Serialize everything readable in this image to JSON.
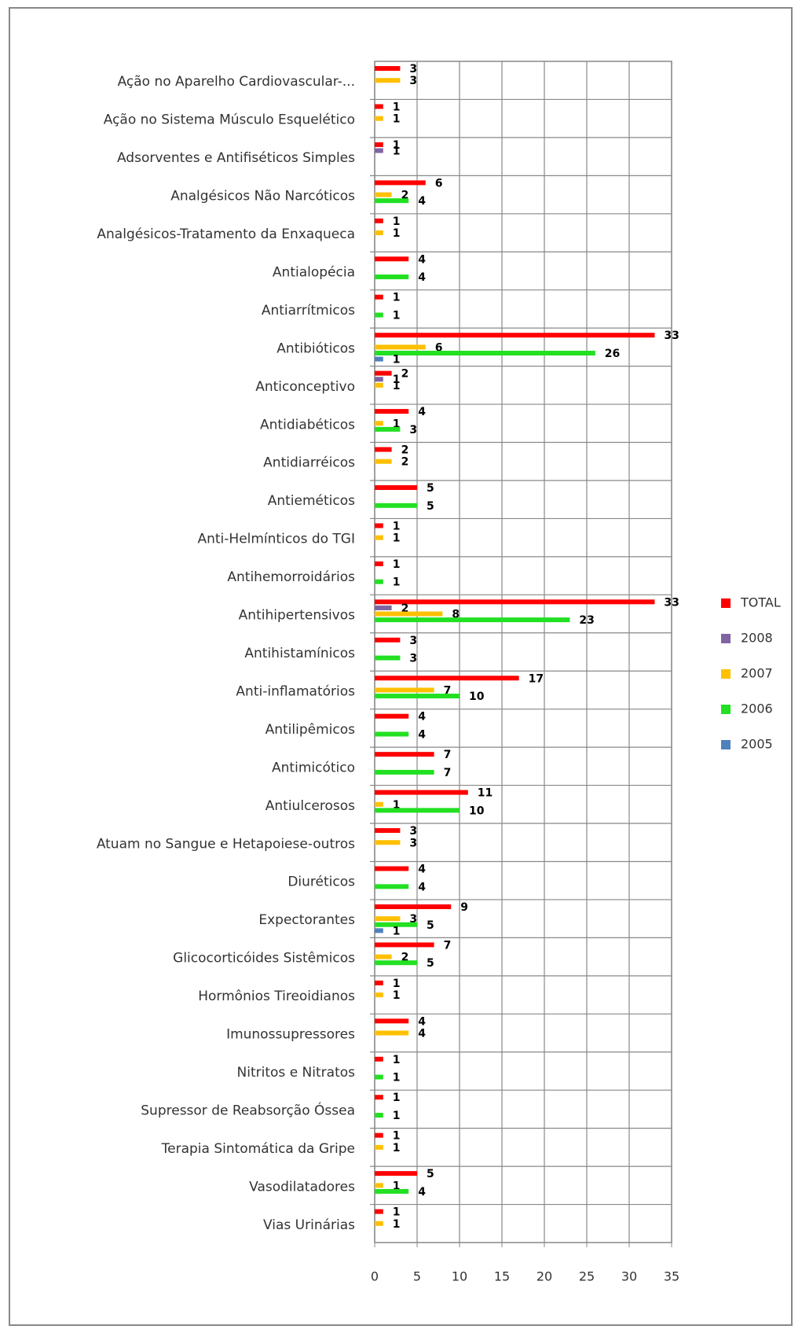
{
  "chart_data": {
    "type": "bar",
    "orientation": "horizontal",
    "categories": [
      "Ação no Aparelho Cardiovascular-...",
      "Ação no Sistema Músculo Esquelético",
      "Adsorventes e Antifiséticos Simples",
      "Analgésicos Não Narcóticos",
      "Analgésicos-Tratamento da Enxaqueca",
      "Antialopécia",
      "Antiarrítmicos",
      "Antibióticos",
      "Anticonceptivo",
      "Antidiabéticos",
      "Antidiarréicos",
      "Antieméticos",
      "Anti-Helmínticos do TGI",
      "Antihemorroidários",
      "Antihipertensivos",
      "Antihistamínicos",
      "Anti-inflamatórios",
      "Antilipêmicos",
      "Antimicótico",
      "Antiulcerosos",
      "Atuam no Sangue e Hetapoiese-outros",
      "Diuréticos",
      "Expectorantes",
      "Glicocorticóides Sistêmicos",
      "Hormônios Tireoidianos",
      "Imunossupressores",
      "Nitritos e Nitratos",
      "Supressor de Reabsorção Óssea",
      "Terapia Sintomática da Gripe",
      "Vasodilatadores",
      "Vias Urinárias"
    ],
    "series": [
      {
        "name": "TOTAL",
        "color": "#ff0000",
        "values": [
          3,
          1,
          1,
          6,
          1,
          4,
          1,
          33,
          2,
          4,
          2,
          5,
          1,
          1,
          33,
          3,
          17,
          4,
          7,
          11,
          3,
          4,
          9,
          7,
          1,
          4,
          1,
          1,
          1,
          5,
          1
        ]
      },
      {
        "name": "2008",
        "color": "#8064a2",
        "values": [
          null,
          null,
          1,
          null,
          null,
          null,
          null,
          null,
          1,
          null,
          null,
          null,
          null,
          null,
          2,
          null,
          null,
          null,
          null,
          null,
          null,
          null,
          null,
          null,
          null,
          null,
          null,
          null,
          null,
          null,
          null
        ]
      },
      {
        "name": "2007",
        "color": "#ffc000",
        "values": [
          3,
          1,
          null,
          2,
          1,
          null,
          null,
          6,
          1,
          1,
          2,
          null,
          1,
          null,
          8,
          null,
          7,
          null,
          null,
          1,
          3,
          null,
          3,
          2,
          1,
          4,
          null,
          null,
          1,
          1,
          1
        ]
      },
      {
        "name": "2006",
        "color": "#22e022",
        "values": [
          null,
          null,
          null,
          4,
          null,
          4,
          1,
          26,
          null,
          3,
          null,
          5,
          null,
          1,
          23,
          3,
          10,
          4,
          7,
          10,
          null,
          4,
          5,
          5,
          null,
          null,
          1,
          1,
          null,
          4,
          null
        ]
      },
      {
        "name": "2005",
        "color": "#4f81bd",
        "values": [
          null,
          null,
          null,
          null,
          null,
          null,
          null,
          1,
          null,
          null,
          null,
          null,
          null,
          null,
          null,
          null,
          null,
          null,
          null,
          null,
          null,
          null,
          1,
          null,
          null,
          null,
          null,
          null,
          null,
          null,
          null
        ]
      }
    ],
    "xlim": [
      0,
      35
    ],
    "xticks": [
      0,
      5,
      10,
      15,
      20,
      25,
      30,
      35
    ],
    "grid": true,
    "legend": "right"
  }
}
